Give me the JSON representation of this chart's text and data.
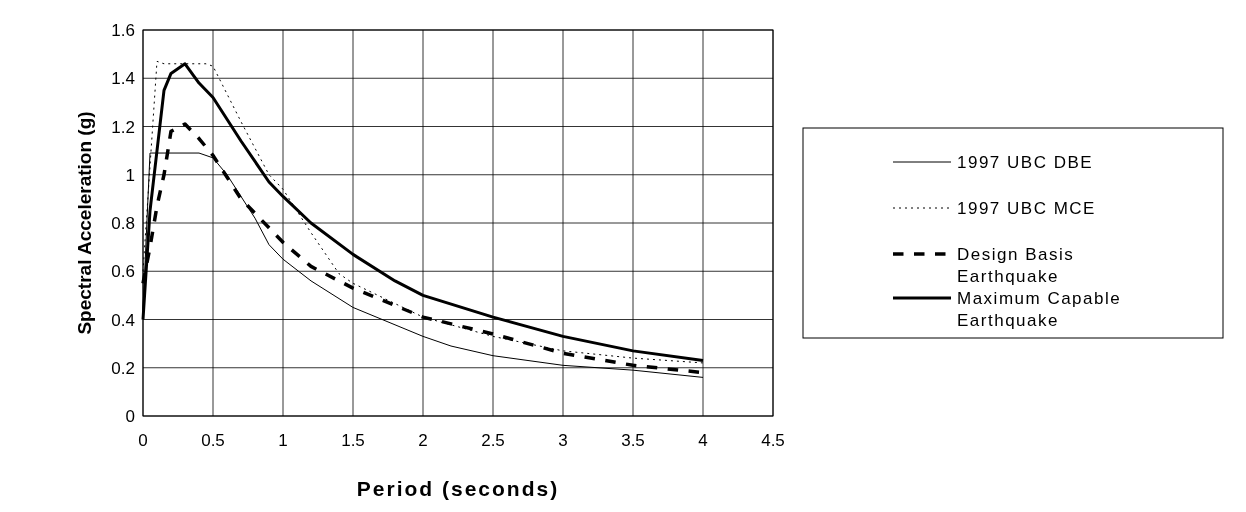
{
  "chart_data": {
    "type": "line",
    "xlabel": "Period (seconds)",
    "ylabel": "Spectral Acceleration (g)",
    "xlim": [
      0,
      4.5
    ],
    "ylim": [
      0,
      1.6
    ],
    "xticks": [
      0,
      0.5,
      1,
      1.5,
      2,
      2.5,
      3,
      3.5,
      4,
      4.5
    ],
    "yticks": [
      0,
      0.2,
      0.4,
      0.6,
      0.8,
      1,
      1.2,
      1.4,
      1.6
    ],
    "grid": true,
    "legend": "right",
    "marker": "none",
    "series": [
      {
        "name": "1997 UBC DBE",
        "color": "#000000",
        "line_style": "solid",
        "x": [
          0,
          0.05,
          0.1,
          0.4,
          0.5,
          0.6,
          0.8,
          0.9,
          1,
          1.2,
          1.5,
          2,
          2.2,
          2.5,
          3,
          3.5,
          4
        ],
        "values": [
          0.44,
          1.09,
          1.09,
          1.09,
          1.07,
          1,
          0.82,
          0.71,
          0.65,
          0.56,
          0.45,
          0.33,
          0.29,
          0.25,
          0.21,
          0.19,
          0.16
        ]
      },
      {
        "name": "1997 UBC MCE",
        "color": "#000000",
        "line_style": "dotted",
        "x": [
          0,
          0.1,
          0.15,
          0.45,
          0.5,
          0.7,
          0.9,
          1,
          1.2,
          1.4,
          1.5,
          2,
          2.5,
          3,
          3.5,
          4
        ],
        "values": [
          0.6,
          1.47,
          1.46,
          1.46,
          1.45,
          1.22,
          1,
          0.94,
          0.76,
          0.59,
          0.55,
          0.41,
          0.33,
          0.27,
          0.24,
          0.22
        ]
      },
      {
        "name": "Design Basis Earthquake",
        "color": "#000000",
        "line_style": "dashed",
        "x": [
          0,
          0.05,
          0.1,
          0.15,
          0.2,
          0.3,
          0.4,
          0.5,
          0.7,
          0.9,
          1,
          1.2,
          1.5,
          2,
          2.5,
          3,
          3.5,
          4
        ],
        "values": [
          0.55,
          0.7,
          0.87,
          1,
          1.18,
          1.21,
          1.15,
          1.08,
          0.9,
          0.78,
          0.72,
          0.62,
          0.53,
          0.41,
          0.34,
          0.26,
          0.21,
          0.18
        ]
      },
      {
        "name": "Maximum Capable Earthquake",
        "color": "#000000",
        "line_style": "solid",
        "x": [
          0,
          0.05,
          0.1,
          0.15,
          0.2,
          0.3,
          0.4,
          0.5,
          0.7,
          0.9,
          1,
          1.2,
          1.5,
          1.8,
          2,
          2.5,
          3,
          3.5,
          4
        ],
        "values": [
          0.4,
          0.85,
          1.1,
          1.35,
          1.42,
          1.46,
          1.38,
          1.32,
          1.14,
          0.97,
          0.91,
          0.8,
          0.67,
          0.56,
          0.5,
          0.41,
          0.33,
          0.27,
          0.23
        ]
      }
    ]
  }
}
